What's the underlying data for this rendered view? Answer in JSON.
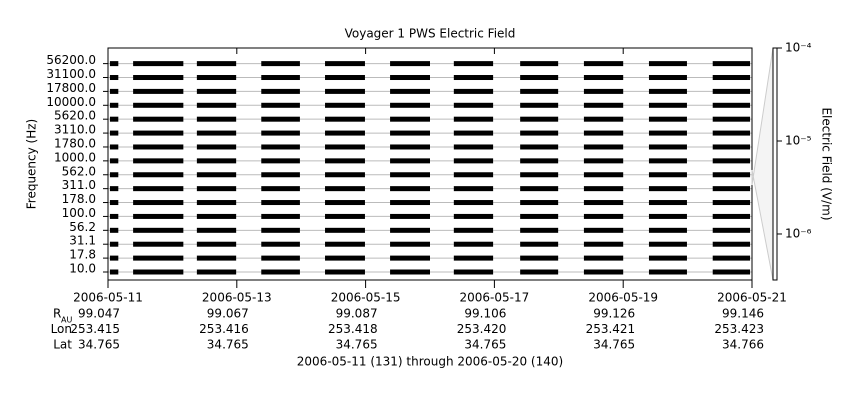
{
  "chart_data": {
    "type": "spectrogram",
    "title": "Voyager 1 PWS Electric Field",
    "y_label": "Frequency (Hz)",
    "z_label": "Electric Field (V/m)",
    "categories": [
      "10.0",
      "17.8",
      "31.1",
      "56.2",
      "100.0",
      "178.0",
      "311.0",
      "562.0",
      "1000.0",
      "1780.0",
      "3110.0",
      "5620.0",
      "10000.0",
      "17800.0",
      "31100.0",
      "56200.0"
    ],
    "xlim": [
      0,
      10
    ],
    "xticks": [
      {
        "value": 0,
        "label": "2006-05-11"
      },
      {
        "value": 2,
        "label": "2006-05-13"
      },
      {
        "value": 4,
        "label": "2006-05-15"
      },
      {
        "value": 6,
        "label": "2006-05-17"
      },
      {
        "value": 8,
        "label": "2006-05-19"
      },
      {
        "value": 10,
        "label": "2006-05-21"
      }
    ],
    "intervals": [
      [
        0.03,
        0.16
      ],
      [
        0.39,
        1.17
      ],
      [
        1.38,
        1.99
      ],
      [
        2.38,
        2.98
      ],
      [
        3.37,
        3.99
      ],
      [
        4.38,
        5.0
      ],
      [
        5.37,
        5.98
      ],
      [
        6.4,
        6.99
      ],
      [
        7.39,
        8.0
      ],
      [
        8.4,
        8.99
      ],
      [
        9.39,
        9.97
      ]
    ],
    "color": "#000000",
    "grid": true,
    "zscale": "log",
    "zlim": [
      3.2e-07,
      0.0001
    ],
    "zticks": [
      {
        "value": 0.0001,
        "label": "10⁻⁴"
      },
      {
        "value": 1e-05,
        "label": "10⁻⁵"
      },
      {
        "value": 1e-06,
        "label": "10⁻⁶"
      }
    ],
    "ephemeris": [
      {
        "label": "R",
        "sub": "AU",
        "values": [
          "99.047",
          "99.067",
          "99.087",
          "99.106",
          "99.126",
          "99.146"
        ]
      },
      {
        "label": "Lon",
        "values": [
          "253.415",
          "253.416",
          "253.418",
          "253.420",
          "253.421",
          "253.423"
        ]
      },
      {
        "label": "Lat",
        "values": [
          "34.765",
          "34.765",
          "34.765",
          "34.765",
          "34.765",
          "34.766"
        ]
      }
    ],
    "footer": "2006-05-11 (131) through 2006-05-20 (140)"
  }
}
